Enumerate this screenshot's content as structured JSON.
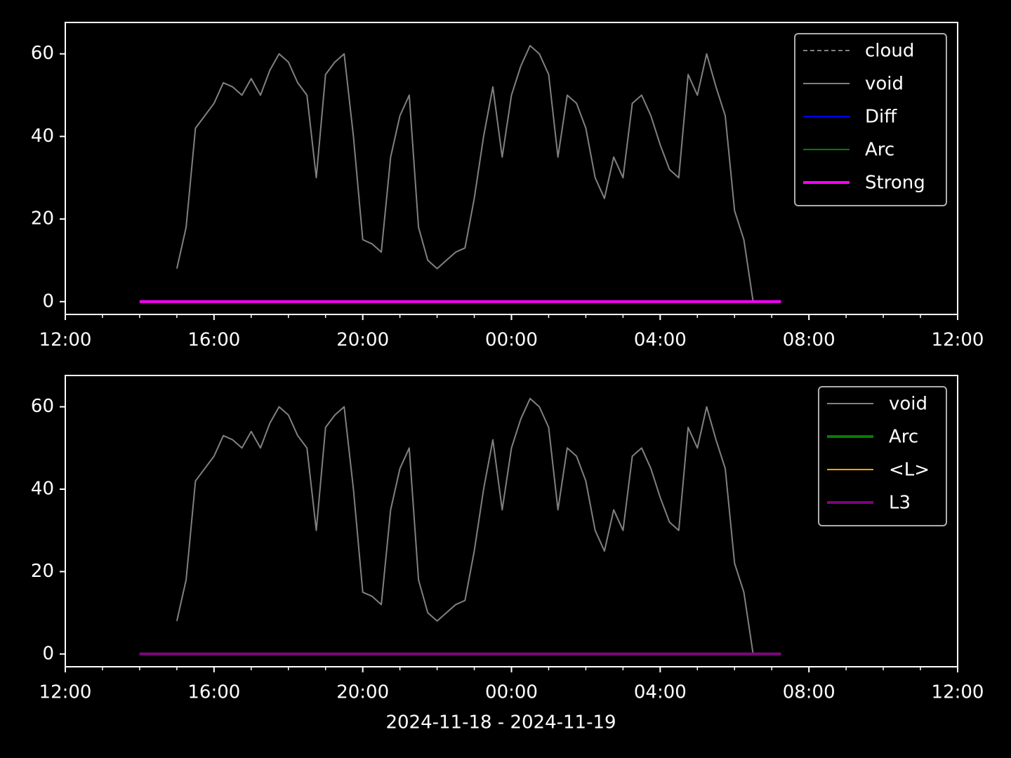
{
  "chart_data": [
    {
      "type": "line",
      "x": [
        14,
        14.25,
        14.5,
        14.75,
        15,
        15.25,
        15.5,
        15.75,
        16,
        16.25,
        16.5,
        16.75,
        17,
        17.25,
        17.5,
        17.75,
        18,
        18.25,
        18.5,
        18.75,
        19,
        19.25,
        19.5,
        19.75,
        20,
        20.25,
        20.5,
        20.75,
        21,
        21.25,
        21.5,
        21.75,
        22,
        22.25,
        22.5,
        22.75,
        23,
        23.25,
        23.5,
        23.75,
        24,
        24.25,
        24.5,
        24.75,
        25,
        25.25,
        25.5,
        25.75,
        26,
        26.25,
        26.5,
        26.75,
        27,
        27.25,
        27.5,
        27.75,
        28,
        28.25,
        28.5,
        28.75,
        29,
        29.25,
        29.5,
        29.75,
        30,
        30.25,
        30.5,
        30.75,
        31,
        31.25
      ],
      "series": [
        {
          "name": "cloud",
          "color": "#808080",
          "dash": true,
          "width": 2,
          "values": [
            null,
            null,
            null,
            null,
            null,
            null,
            null,
            null,
            null,
            null,
            null,
            null,
            null,
            null,
            null,
            null,
            null,
            null,
            null,
            null,
            null,
            null,
            null,
            null,
            null,
            null,
            null,
            null,
            null,
            null,
            null,
            null,
            null,
            null,
            null,
            null,
            null,
            null,
            null,
            null,
            null,
            null,
            null,
            null,
            null,
            null,
            null,
            null,
            null,
            null,
            null,
            null,
            null,
            null,
            null,
            null,
            null,
            null,
            null,
            null,
            null,
            null,
            null,
            null,
            null,
            null,
            null,
            null,
            null,
            null
          ]
        },
        {
          "name": "void",
          "color": "#808080",
          "width": 2,
          "values": [
            null,
            null,
            null,
            null,
            8,
            18,
            42,
            45,
            48,
            53,
            52,
            50,
            54,
            50,
            56,
            60,
            58,
            53,
            50,
            30,
            55,
            58,
            60,
            40,
            15,
            14,
            12,
            35,
            45,
            50,
            18,
            10,
            8,
            10,
            12,
            13,
            25,
            40,
            52,
            35,
            50,
            57,
            62,
            60,
            55,
            35,
            50,
            48,
            42,
            30,
            25,
            35,
            30,
            48,
            50,
            45,
            38,
            32,
            30,
            55,
            50,
            60,
            52,
            45,
            22,
            15,
            0,
            null,
            null,
            null
          ]
        },
        {
          "name": "Diff",
          "color": "#0000ff",
          "width": 2,
          "values": [
            0,
            0,
            0,
            0,
            0,
            0,
            0,
            0,
            0,
            0,
            0,
            0,
            0,
            0,
            0,
            0,
            0,
            0,
            0,
            0,
            0,
            0,
            0,
            0,
            0,
            0,
            0,
            0,
            0,
            0,
            0,
            0,
            0,
            0,
            0,
            0,
            0,
            0,
            0,
            0,
            0,
            0,
            0,
            0,
            0,
            0,
            0,
            0,
            0,
            0,
            0,
            0,
            0,
            0,
            0,
            0,
            0,
            0,
            0,
            0,
            0,
            0,
            0,
            0,
            0,
            0,
            0,
            0,
            0,
            0
          ]
        },
        {
          "name": "Arc",
          "color": "#008000",
          "width": 2,
          "values": [
            0,
            0,
            0,
            0,
            0,
            0,
            0,
            0,
            0,
            0,
            0,
            0,
            0,
            0,
            0,
            0,
            0,
            0,
            0,
            0,
            0,
            0,
            0,
            0,
            0,
            0,
            0,
            0,
            0,
            0,
            0,
            0,
            0,
            0,
            0,
            0,
            0,
            0,
            0,
            0,
            0,
            0,
            0,
            0,
            0,
            0,
            0,
            0,
            0,
            0,
            0,
            0,
            0,
            0,
            0,
            0,
            0,
            0,
            0,
            0,
            0,
            0,
            0,
            0,
            0,
            0,
            0,
            0,
            0,
            0
          ]
        },
        {
          "name": "Strong",
          "color": "#ff00ff",
          "width": 4,
          "values": [
            0,
            0,
            0,
            0,
            0,
            0,
            0,
            0,
            0,
            0,
            0,
            0,
            0,
            0,
            0,
            0,
            0,
            0,
            0,
            0,
            0,
            0,
            0,
            0,
            0,
            0,
            0,
            0,
            0,
            0,
            0,
            0,
            0,
            0,
            0,
            0,
            0,
            0,
            0,
            0,
            0,
            0,
            0,
            0,
            0,
            0,
            0,
            0,
            0,
            0,
            0,
            0,
            0,
            0,
            0,
            0,
            0,
            0,
            0,
            0,
            0,
            0,
            0,
            0,
            0,
            0,
            0,
            0,
            0,
            0
          ]
        }
      ],
      "xlim": [
        12,
        36
      ],
      "xticks": [
        {
          "value": 12,
          "label": "12:00"
        },
        {
          "value": 16,
          "label": "16:00"
        },
        {
          "value": 20,
          "label": "20:00"
        },
        {
          "value": 24,
          "label": "00:00"
        },
        {
          "value": 28,
          "label": "04:00"
        },
        {
          "value": 32,
          "label": "08:00"
        },
        {
          "value": 36,
          "label": "12:00"
        }
      ],
      "xminorticks": [
        13,
        14,
        15,
        17,
        18,
        19,
        21,
        22,
        23,
        25,
        26,
        27,
        29,
        30,
        31,
        33,
        34,
        35
      ],
      "ylim": [
        -3.1,
        67.6
      ],
      "yticks": [
        0,
        20,
        40,
        60
      ],
      "legend": "upper right"
    },
    {
      "type": "line",
      "x": [
        14,
        14.25,
        14.5,
        14.75,
        15,
        15.25,
        15.5,
        15.75,
        16,
        16.25,
        16.5,
        16.75,
        17,
        17.25,
        17.5,
        17.75,
        18,
        18.25,
        18.5,
        18.75,
        19,
        19.25,
        19.5,
        19.75,
        20,
        20.25,
        20.5,
        20.75,
        21,
        21.25,
        21.5,
        21.75,
        22,
        22.25,
        22.5,
        22.75,
        23,
        23.25,
        23.5,
        23.75,
        24,
        24.25,
        24.5,
        24.75,
        25,
        25.25,
        25.5,
        25.75,
        26,
        26.25,
        26.5,
        26.75,
        27,
        27.25,
        27.5,
        27.75,
        28,
        28.25,
        28.5,
        28.75,
        29,
        29.25,
        29.5,
        29.75,
        30,
        30.25,
        30.5,
        30.75,
        31,
        31.25
      ],
      "series": [
        {
          "name": "void",
          "color": "#808080",
          "width": 2,
          "values": [
            null,
            null,
            null,
            null,
            8,
            18,
            42,
            45,
            48,
            53,
            52,
            50,
            54,
            50,
            56,
            60,
            58,
            53,
            50,
            30,
            55,
            58,
            60,
            40,
            15,
            14,
            12,
            35,
            45,
            50,
            18,
            10,
            8,
            10,
            12,
            13,
            25,
            40,
            52,
            35,
            50,
            57,
            62,
            60,
            55,
            35,
            50,
            48,
            42,
            30,
            25,
            35,
            30,
            48,
            50,
            45,
            38,
            32,
            30,
            55,
            50,
            60,
            52,
            45,
            22,
            15,
            0,
            null,
            null,
            null
          ]
        },
        {
          "name": "Arc",
          "color": "#008000",
          "width": 4,
          "values": [
            0,
            0,
            0,
            0,
            0,
            0,
            0,
            0,
            0,
            0,
            0,
            0,
            0,
            0,
            0,
            0,
            0,
            0,
            0,
            0,
            0,
            0,
            0,
            0,
            0,
            0,
            0,
            0,
            0,
            0,
            0,
            0,
            0,
            0,
            0,
            0,
            0,
            0,
            0,
            0,
            0,
            0,
            0,
            0,
            0,
            0,
            0,
            0,
            0,
            0,
            0,
            0,
            0,
            0,
            0,
            0,
            0,
            0,
            0,
            0,
            0,
            0,
            0,
            0,
            0,
            0,
            0,
            0,
            0,
            0
          ]
        },
        {
          "name": "<L>",
          "color": "#ffa500",
          "width": 2,
          "values": [
            0,
            0,
            0,
            0,
            0,
            0,
            0,
            0,
            0,
            0,
            0,
            0,
            0,
            0,
            0,
            0,
            0,
            0,
            0,
            0,
            0,
            0,
            0,
            0,
            0,
            0,
            0,
            0,
            0,
            0,
            0,
            0,
            0,
            0,
            0,
            0,
            0,
            0,
            0,
            0,
            0,
            0,
            0,
            0,
            0,
            0,
            0,
            0,
            0,
            0,
            0,
            0,
            0,
            0,
            0,
            0,
            0,
            0,
            0,
            0,
            0,
            0,
            0,
            0,
            0,
            0,
            0,
            0,
            0,
            0
          ]
        },
        {
          "name": "L3",
          "color": "#800080",
          "width": 4,
          "values": [
            0,
            0,
            0,
            0,
            0,
            0,
            0,
            0,
            0,
            0,
            0,
            0,
            0,
            0,
            0,
            0,
            0,
            0,
            0,
            0,
            0,
            0,
            0,
            0,
            0,
            0,
            0,
            0,
            0,
            0,
            0,
            0,
            0,
            0,
            0,
            0,
            0,
            0,
            0,
            0,
            0,
            0,
            0,
            0,
            0,
            0,
            0,
            0,
            0,
            0,
            0,
            0,
            0,
            0,
            0,
            0,
            0,
            0,
            0,
            0,
            0,
            0,
            0,
            0,
            0,
            0,
            0,
            0,
            0,
            0
          ]
        }
      ],
      "xlim": [
        12,
        36
      ],
      "xticks": [
        {
          "value": 12,
          "label": "12:00"
        },
        {
          "value": 16,
          "label": "16:00"
        },
        {
          "value": 20,
          "label": "20:00"
        },
        {
          "value": 24,
          "label": "00:00"
        },
        {
          "value": 28,
          "label": "04:00"
        },
        {
          "value": 32,
          "label": "08:00"
        },
        {
          "value": 36,
          "label": "12:00"
        }
      ],
      "xminorticks": [
        13,
        14,
        15,
        17,
        18,
        19,
        21,
        22,
        23,
        25,
        26,
        27,
        29,
        30,
        31,
        33,
        34,
        35
      ],
      "ylim": [
        -3.1,
        67.6
      ],
      "yticks": [
        0,
        20,
        40,
        60
      ],
      "legend": "upper right",
      "xlabel": "2024-11-18 - 2024-11-19"
    }
  ]
}
